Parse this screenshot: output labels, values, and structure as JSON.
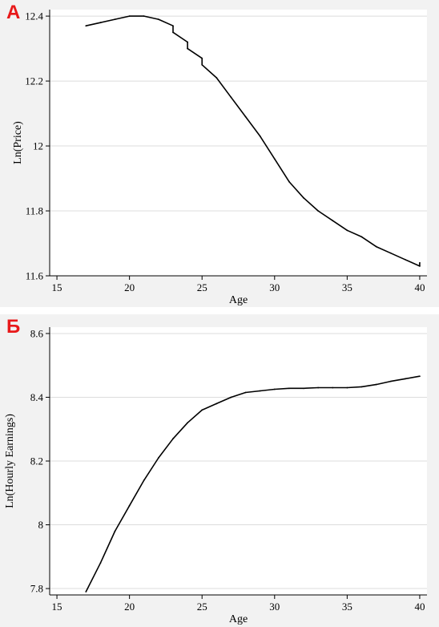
{
  "panels": [
    {
      "letter": "А"
    },
    {
      "letter": "Б"
    }
  ],
  "colors": {
    "line": "#000000",
    "grid": "#dcdcdc",
    "plot_bg": "#ffffff",
    "panel_bg": "#f2f2f2",
    "letter": "#e8191a"
  },
  "chart_data": [
    {
      "type": "line",
      "title": "",
      "xlabel": "Age",
      "ylabel": "Ln(Price)",
      "xlim": [
        14.5,
        40.5
      ],
      "ylim": [
        11.6,
        12.42
      ],
      "xticks": [
        15,
        20,
        25,
        30,
        35,
        40
      ],
      "yticks": [
        11.6,
        11.8,
        12,
        12.2,
        12.4
      ],
      "ytick_labels": [
        "11.6",
        "11.8",
        "12",
        "12.2",
        "12.4"
      ],
      "grid": true,
      "x": [
        17,
        18,
        19,
        20,
        21,
        22,
        23,
        23,
        24,
        24,
        25,
        25,
        26,
        27,
        28,
        29,
        30,
        31,
        32,
        33,
        34,
        35,
        36,
        37,
        38,
        39,
        40,
        40
      ],
      "y": [
        12.37,
        12.38,
        12.39,
        12.4,
        12.4,
        12.39,
        12.37,
        12.35,
        12.32,
        12.3,
        12.27,
        12.25,
        12.21,
        12.15,
        12.09,
        12.03,
        11.96,
        11.89,
        11.84,
        11.8,
        11.77,
        11.74,
        11.72,
        11.69,
        11.67,
        11.65,
        11.63,
        11.64
      ]
    },
    {
      "type": "line",
      "title": "",
      "xlabel": "Age",
      "ylabel": "Ln(Hourly Earnings)",
      "xlim": [
        14.5,
        40.5
      ],
      "ylim": [
        7.78,
        8.62
      ],
      "xticks": [
        15,
        20,
        25,
        30,
        35,
        40
      ],
      "yticks": [
        7.8,
        8,
        8.2,
        8.4,
        8.6
      ],
      "ytick_labels": [
        "7.8",
        "8",
        "8.2",
        "8.4",
        "8.6"
      ],
      "grid": true,
      "x": [
        17,
        18,
        19,
        20,
        21,
        22,
        23,
        24,
        25,
        26,
        27,
        27,
        28,
        29,
        30,
        31,
        32,
        33,
        34,
        35,
        36,
        37,
        38,
        39,
        40
      ],
      "y": [
        7.79,
        7.88,
        7.98,
        8.06,
        8.14,
        8.21,
        8.27,
        8.32,
        8.36,
        8.38,
        8.4,
        8.4,
        8.415,
        8.42,
        8.425,
        8.428,
        8.428,
        8.43,
        8.43,
        8.43,
        8.433,
        8.44,
        8.45,
        8.458,
        8.466
      ]
    }
  ]
}
